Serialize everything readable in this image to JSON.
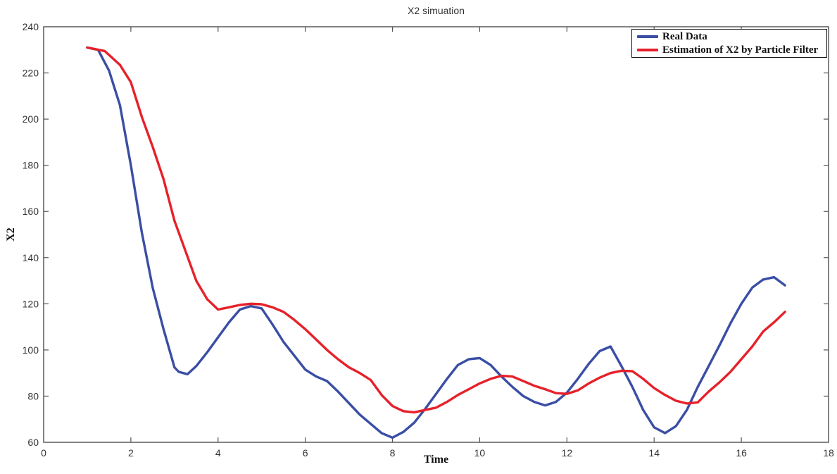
{
  "figure": {
    "title": "X2 simuation",
    "xlabel": "Time",
    "ylabel": "X2"
  },
  "colors": {
    "real_data": "#3A4EA4",
    "estimate": "#E6212A",
    "axis": "#404040",
    "tick": "#555555",
    "label": "#333333"
  },
  "chart_data": {
    "type": "line",
    "title": "X2 simuation",
    "xlabel": "Time",
    "ylabel": "X2",
    "xlim": [
      0,
      18
    ],
    "ylim": [
      60,
      240
    ],
    "xticks": [
      0,
      2,
      4,
      6,
      8,
      10,
      12,
      14,
      16,
      18
    ],
    "yticks": [
      60,
      80,
      100,
      120,
      140,
      160,
      180,
      200,
      220,
      240
    ],
    "grid": false,
    "legend_position": "top-right",
    "series": [
      {
        "name": "Real Data",
        "color": "#3A4EA4",
        "x": [
          1,
          1.25,
          1.5,
          1.75,
          2,
          2.25,
          2.5,
          2.75,
          3,
          3.1,
          3.3,
          3.5,
          3.75,
          4,
          4.25,
          4.5,
          4.75,
          5,
          5.25,
          5.5,
          5.75,
          6,
          6.25,
          6.5,
          6.75,
          7,
          7.25,
          7.5,
          7.75,
          8,
          8.25,
          8.5,
          8.75,
          9,
          9.25,
          9.5,
          9.75,
          10,
          10.25,
          10.5,
          10.75,
          11,
          11.25,
          11.5,
          11.75,
          12,
          12.25,
          12.5,
          12.75,
          13,
          13.25,
          13.5,
          13.75,
          14,
          14.25,
          14.5,
          14.75,
          15,
          15.25,
          15.5,
          15.75,
          16,
          16.25,
          16.5,
          16.75,
          17
        ],
        "y": [
          231,
          230,
          221,
          206,
          180,
          151,
          127,
          109,
          92.5,
          90.5,
          89.5,
          93,
          99,
          105.5,
          112,
          117.5,
          119,
          118,
          111,
          103.5,
          97.5,
          91.5,
          88.5,
          86.5,
          82,
          77,
          72,
          68,
          64,
          62,
          64.5,
          68.5,
          74.5,
          81,
          87.5,
          93.5,
          96,
          96.5,
          93.5,
          88.5,
          84,
          80,
          77.5,
          76,
          77.5,
          81.5,
          87.5,
          94,
          99.5,
          101.5,
          93,
          84,
          74,
          66.5,
          64,
          67,
          74,
          84,
          93,
          102,
          111.5,
          120,
          127,
          130.5,
          131.5,
          128
        ]
      },
      {
        "name": "Estimation of X2 by Particle Filter",
        "color": "#E6212A",
        "x": [
          1,
          1.4,
          1.75,
          2,
          2.25,
          2.5,
          2.75,
          3,
          3.25,
          3.5,
          3.75,
          4,
          4.25,
          4.5,
          4.75,
          5,
          5.25,
          5.5,
          5.75,
          6,
          6.25,
          6.5,
          6.75,
          7,
          7.25,
          7.5,
          7.75,
          8,
          8.25,
          8.5,
          8.75,
          9,
          9.25,
          9.5,
          9.75,
          10,
          10.25,
          10.5,
          10.75,
          11,
          11.25,
          11.5,
          11.75,
          12,
          12.25,
          12.5,
          12.75,
          13,
          13.25,
          13.5,
          13.75,
          14,
          14.25,
          14.5,
          14.75,
          15,
          15.25,
          15.5,
          15.75,
          16,
          16.25,
          16.5,
          16.75,
          17
        ],
        "y": [
          231,
          229.5,
          223.5,
          216,
          201,
          188,
          174,
          156,
          143,
          130,
          122,
          117.5,
          118.5,
          119.5,
          120,
          119.8,
          118.5,
          116.5,
          113,
          109,
          104.5,
          100,
          96,
          92.5,
          90,
          87,
          80.5,
          75.7,
          73.5,
          73,
          74,
          75,
          77.5,
          80.5,
          83,
          85.5,
          87.5,
          88.8,
          88.5,
          86.5,
          84.5,
          83,
          81.3,
          81,
          82.5,
          85.5,
          88,
          90,
          91,
          90.8,
          87.5,
          83.5,
          80.5,
          78,
          76.8,
          77.3,
          82,
          86,
          90.5,
          96,
          101.5,
          108,
          112,
          116.5
        ]
      }
    ]
  }
}
